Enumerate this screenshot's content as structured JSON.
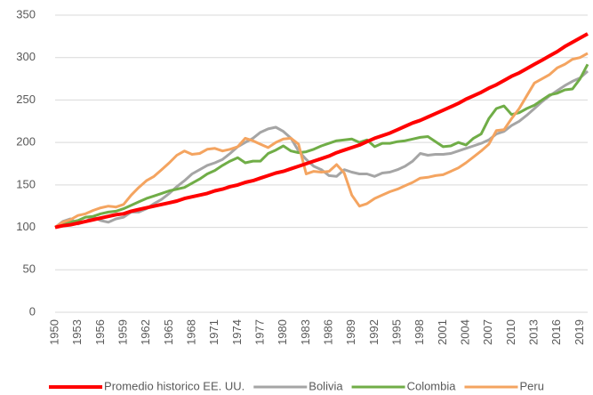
{
  "chart_data": {
    "type": "line",
    "x": [
      1950,
      1951,
      1952,
      1953,
      1954,
      1955,
      1956,
      1957,
      1958,
      1959,
      1960,
      1961,
      1962,
      1963,
      1964,
      1965,
      1966,
      1967,
      1968,
      1969,
      1970,
      1971,
      1972,
      1973,
      1974,
      1975,
      1976,
      1977,
      1978,
      1979,
      1980,
      1981,
      1982,
      1983,
      1984,
      1985,
      1986,
      1987,
      1988,
      1989,
      1990,
      1991,
      1992,
      1993,
      1994,
      1995,
      1996,
      1997,
      1998,
      1999,
      2000,
      2001,
      2002,
      2003,
      2004,
      2005,
      2006,
      2007,
      2008,
      2009,
      2010,
      2011,
      2012,
      2013,
      2014,
      2015,
      2016,
      2017,
      2018,
      2019,
      2020
    ],
    "xlim": [
      1950,
      2020
    ],
    "xticks": [
      1950,
      1953,
      1956,
      1959,
      1962,
      1965,
      1968,
      1971,
      1974,
      1977,
      1980,
      1983,
      1986,
      1989,
      1992,
      1995,
      1998,
      2001,
      2004,
      2007,
      2010,
      2013,
      2016,
      2019
    ],
    "ylim": [
      0,
      350
    ],
    "yticks": [
      0,
      50,
      100,
      150,
      200,
      250,
      300,
      350
    ],
    "grid": true,
    "legend": "bottom",
    "series": [
      {
        "name": "Promedio historico EE. UU.",
        "color": "#ff0000",
        "values": [
          100,
          102,
          103,
          105,
          107,
          109,
          111,
          113,
          115,
          116,
          119,
          121,
          123,
          125,
          127,
          129,
          131,
          134,
          136,
          138,
          140,
          143,
          145,
          148,
          150,
          153,
          155,
          158,
          161,
          164,
          166,
          169,
          172,
          175,
          178,
          181,
          184,
          188,
          191,
          194,
          197,
          201,
          205,
          208,
          211,
          215,
          219,
          223,
          226,
          230,
          234,
          238,
          242,
          246,
          251,
          255,
          259,
          264,
          268,
          273,
          278,
          282,
          287,
          292,
          297,
          302,
          307,
          313,
          318,
          323,
          328
        ]
      },
      {
        "name": "Bolivia",
        "color": "#a5a5a5",
        "values": [
          100,
          107,
          110,
          104,
          107,
          112,
          108,
          106,
          110,
          112,
          118,
          118,
          122,
          128,
          133,
          140,
          148,
          155,
          163,
          168,
          173,
          176,
          180,
          187,
          195,
          200,
          205,
          212,
          216,
          218,
          213,
          205,
          190,
          180,
          172,
          168,
          161,
          160,
          168,
          165,
          163,
          163,
          160,
          164,
          165,
          168,
          172,
          178,
          187,
          185,
          186,
          186,
          187,
          190,
          193,
          196,
          199,
          203,
          210,
          213,
          220,
          225,
          232,
          240,
          248,
          255,
          261,
          267,
          272,
          276,
          284
        ]
      },
      {
        "name": "Colombia",
        "color": "#70ad47",
        "values": [
          100,
          104,
          106,
          108,
          112,
          113,
          116,
          118,
          119,
          122,
          126,
          130,
          134,
          137,
          140,
          143,
          145,
          147,
          152,
          157,
          163,
          167,
          173,
          178,
          182,
          176,
          178,
          178,
          187,
          191,
          196,
          190,
          188,
          189,
          192,
          196,
          199,
          202,
          203,
          204,
          200,
          203,
          195,
          199,
          199,
          201,
          202,
          204,
          206,
          207,
          201,
          195,
          196,
          200,
          197,
          205,
          210,
          228,
          240,
          243,
          233,
          235,
          240,
          244,
          250,
          256,
          258,
          262,
          263,
          275,
          292
        ]
      },
      {
        "name": "Peru",
        "color": "#f4a460",
        "values": [
          100,
          106,
          109,
          114,
          116,
          120,
          123,
          125,
          124,
          127,
          138,
          147,
          155,
          160,
          168,
          176,
          185,
          190,
          186,
          187,
          192,
          193,
          190,
          192,
          195,
          205,
          202,
          198,
          194,
          200,
          204,
          205,
          198,
          163,
          166,
          165,
          166,
          174,
          164,
          138,
          125,
          128,
          134,
          138,
          142,
          145,
          149,
          153,
          158,
          159,
          161,
          162,
          166,
          170,
          176,
          183,
          190,
          198,
          214,
          215,
          228,
          240,
          255,
          270,
          275,
          280,
          288,
          292,
          298,
          300,
          305
        ]
      }
    ]
  }
}
